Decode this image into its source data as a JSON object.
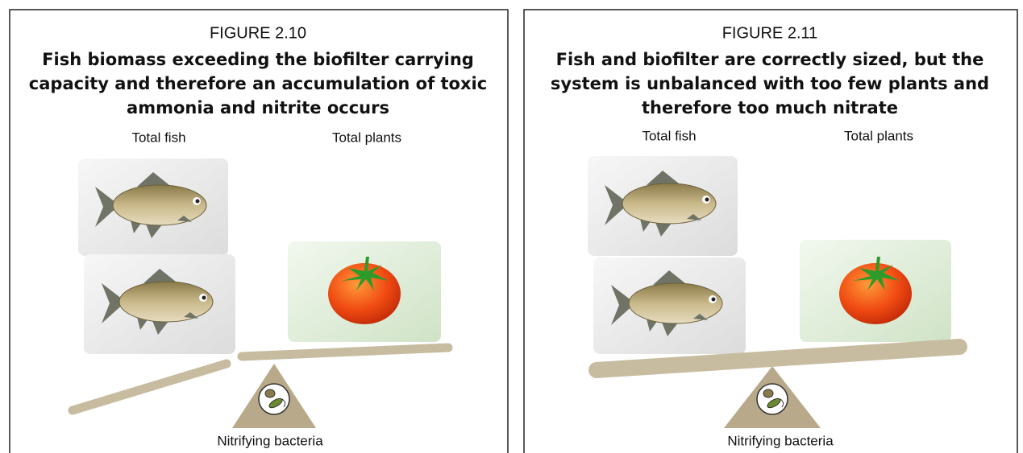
{
  "figures": [
    {
      "label": "FIGURE 2.10",
      "title_lines": [
        "Fish biomass exceeding the biofilter carrying",
        "capacity and therefore an accumulation of toxic",
        "ammonia and nitrite occurs"
      ],
      "fish_label": "Total fish",
      "plants_label": "Total plants",
      "bacteria_label": "Nitrifying bacteria"
    },
    {
      "label": "FIGURE 2.11",
      "title_lines": [
        "Fish and biofilter are correctly sized, but the",
        "system is unbalanced with too few plants and",
        "therefore too much nitrate"
      ],
      "fish_label": "Total fish",
      "plants_label": "Total plants",
      "bacteria_label": "Nitrifying bacteria"
    }
  ]
}
